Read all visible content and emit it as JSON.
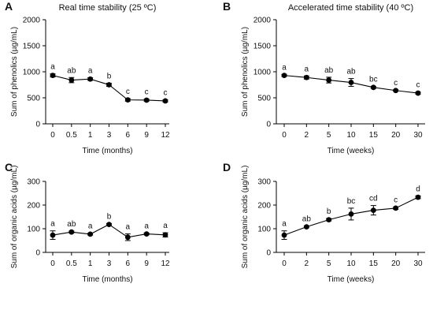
{
  "chart_data": [
    {
      "panel_label": "A",
      "type": "line",
      "title": "Real time stability (25 ºC)",
      "xlabel": "Time (months)",
      "ylabel": "Sum of phenolics (µg/mL)",
      "categories": [
        "0",
        "0.5",
        "1",
        "3",
        "6",
        "9",
        "12"
      ],
      "ylim": [
        0,
        2000
      ],
      "yticks": [
        "0",
        "500",
        "1000",
        "1500",
        "2000"
      ],
      "series": [
        {
          "values": [
            930,
            840,
            860,
            750,
            460,
            455,
            440
          ],
          "errors": [
            30,
            50,
            25,
            30,
            25,
            20,
            20
          ],
          "letters": [
            "a",
            "ab",
            "a",
            "b",
            "c",
            "c",
            "c"
          ]
        }
      ],
      "grid": false
    },
    {
      "panel_label": "B",
      "type": "line",
      "title": "Accelerated time stability (40 ºC)",
      "xlabel": "Time (weeks)",
      "ylabel": "Sum of phenolics (µg/mL)",
      "categories": [
        "0",
        "2",
        "5",
        "10",
        "15",
        "20",
        "30"
      ],
      "ylim": [
        0,
        2000
      ],
      "yticks": [
        "0",
        "500",
        "1000",
        "1500",
        "2000"
      ],
      "series": [
        {
          "values": [
            930,
            890,
            840,
            795,
            700,
            640,
            590
          ],
          "errors": [
            20,
            30,
            55,
            75,
            20,
            15,
            20
          ],
          "letters": [
            "a",
            "a",
            "ab",
            "ab",
            "bc",
            "c",
            "c"
          ]
        }
      ],
      "grid": false
    },
    {
      "panel_label": "C",
      "type": "line",
      "title": "",
      "xlabel": "Time (months)",
      "ylabel": "Sum of organic acids (µg/mL)",
      "categories": [
        "0",
        "0.5",
        "1",
        "3",
        "6",
        "9",
        "12"
      ],
      "ylim": [
        0,
        300
      ],
      "yticks": [
        "0",
        "100",
        "200",
        "300"
      ],
      "series": [
        {
          "values": [
            73,
            86,
            77,
            118,
            64,
            78,
            74
          ],
          "errors": [
            18,
            4,
            4,
            4,
            14,
            4,
            9
          ],
          "letters": [
            "a",
            "ab",
            "a",
            "b",
            "a",
            "a",
            "a"
          ]
        }
      ],
      "grid": false
    },
    {
      "panel_label": "D",
      "type": "line",
      "title": "",
      "xlabel": "Time (weeks)",
      "ylabel": "Sum of organic acids (µg/mL)",
      "categories": [
        "0",
        "2",
        "5",
        "10",
        "15",
        "20",
        "30"
      ],
      "ylim": [
        0,
        300
      ],
      "yticks": [
        "0",
        "100",
        "200",
        "300"
      ],
      "series": [
        {
          "values": [
            73,
            108,
            138,
            162,
            178,
            187,
            233
          ],
          "errors": [
            18,
            4,
            5,
            25,
            20,
            5,
            6
          ],
          "letters": [
            "a",
            "ab",
            "b",
            "bc",
            "cd",
            "c",
            "d"
          ]
        }
      ],
      "grid": false
    }
  ]
}
